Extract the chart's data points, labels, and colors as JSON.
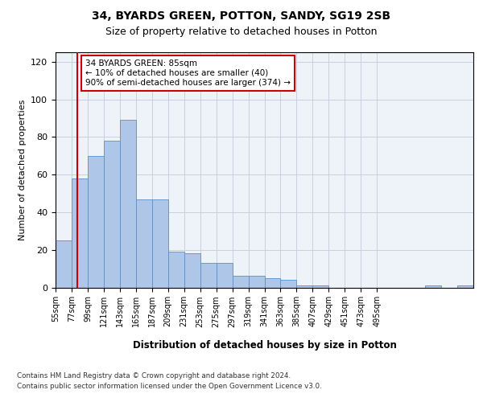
{
  "title1": "34, BYARDS GREEN, POTTON, SANDY, SG19 2SB",
  "title2": "Size of property relative to detached houses in Potton",
  "xlabel": "Distribution of detached houses by size in Potton",
  "ylabel": "Number of detached properties",
  "bar_values": [
    25,
    58,
    70,
    78,
    89,
    47,
    47,
    19,
    18,
    13,
    13,
    6,
    6,
    5,
    4,
    1,
    1,
    0,
    0,
    0,
    0,
    0,
    0,
    1,
    0,
    1
  ],
  "bin_edges": [
    55,
    77,
    99,
    121,
    143,
    165,
    187,
    209,
    231,
    253,
    275,
    297,
    319,
    341,
    363,
    385,
    407,
    429,
    451,
    473,
    495,
    517,
    539,
    561,
    583,
    605,
    627
  ],
  "bar_color": "#aec6e8",
  "bar_edge_color": "#5b8fc9",
  "property_size": 85,
  "annotation_line1": "34 BYARDS GREEN: 85sqm",
  "annotation_line2": "← 10% of detached houses are smaller (40)",
  "annotation_line3": "90% of semi-detached houses are larger (374) →",
  "annotation_box_color": "#ffffff",
  "annotation_box_edge": "#cc0000",
  "red_line_color": "#cc0000",
  "ylim": [
    0,
    125
  ],
  "yticks": [
    0,
    20,
    40,
    60,
    80,
    100,
    120
  ],
  "tick_labels": [
    "55sqm",
    "77sqm",
    "99sqm",
    "121sqm",
    "143sqm",
    "165sqm",
    "187sqm",
    "209sqm",
    "231sqm",
    "253sqm",
    "275sqm",
    "297sqm",
    "319sqm",
    "341sqm",
    "363sqm",
    "385sqm",
    "407sqm",
    "429sqm",
    "451sqm",
    "473sqm",
    "495sqm"
  ],
  "footnote1": "Contains HM Land Registry data © Crown copyright and database right 2024.",
  "footnote2": "Contains public sector information licensed under the Open Government Licence v3.0.",
  "bg_color": "#eef2f9",
  "grid_color": "#c8d0e0",
  "fig_bg": "#ffffff"
}
